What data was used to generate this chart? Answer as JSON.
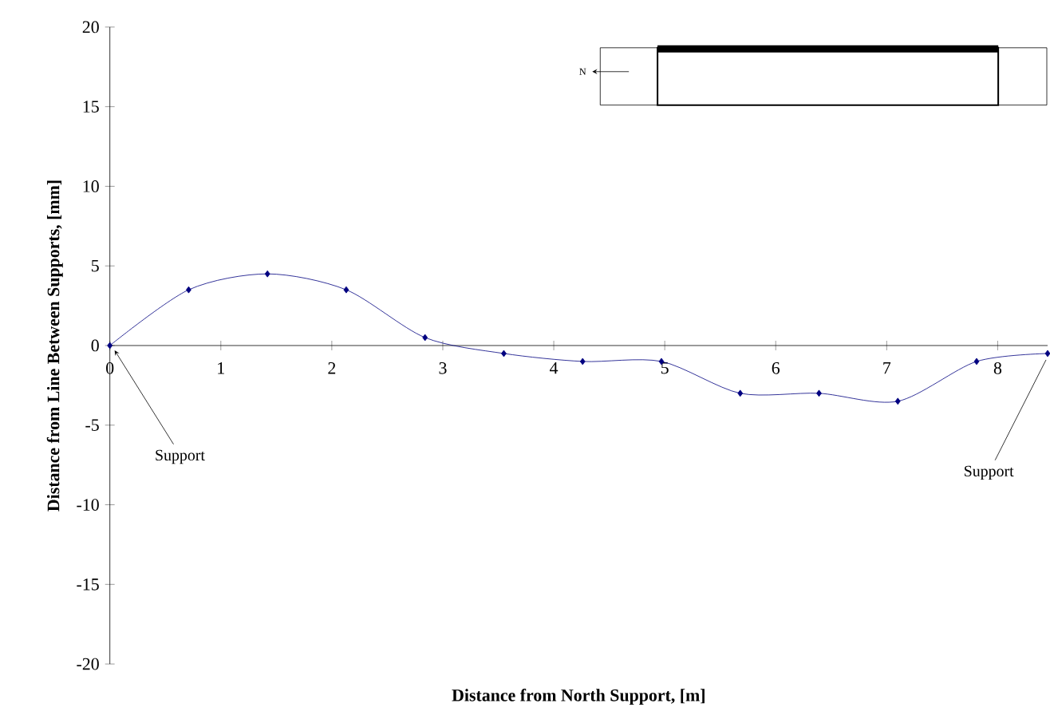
{
  "chart_data": {
    "type": "line",
    "xlabel": "Distance from North Support, [m]",
    "ylabel": "Distance from Line Between Supports, [mm]",
    "x": [
      0,
      0.71,
      1.42,
      2.13,
      2.84,
      3.55,
      4.26,
      4.97,
      5.68,
      6.39,
      7.1,
      7.81,
      8.45
    ],
    "values": [
      0,
      3.5,
      4.5,
      3.5,
      0.5,
      -0.5,
      -1,
      -1,
      -3,
      -3,
      -3.5,
      -1,
      -0.5
    ],
    "color": "#000080",
    "marker": "diamond",
    "line_style": "solid",
    "grid": false,
    "xlim": [
      0,
      8.45
    ],
    "ylim": [
      -20,
      20
    ],
    "xticks": [
      0,
      1,
      2,
      3,
      4,
      5,
      6,
      7,
      8
    ],
    "yticks": [
      -20,
      -15,
      -10,
      -5,
      0,
      5,
      10,
      15,
      20
    ],
    "annotations": [
      {
        "text": "Support",
        "x": 0,
        "y": 0
      },
      {
        "text": "Support",
        "x": 8.45,
        "y": -0.5
      },
      "N"
    ]
  }
}
